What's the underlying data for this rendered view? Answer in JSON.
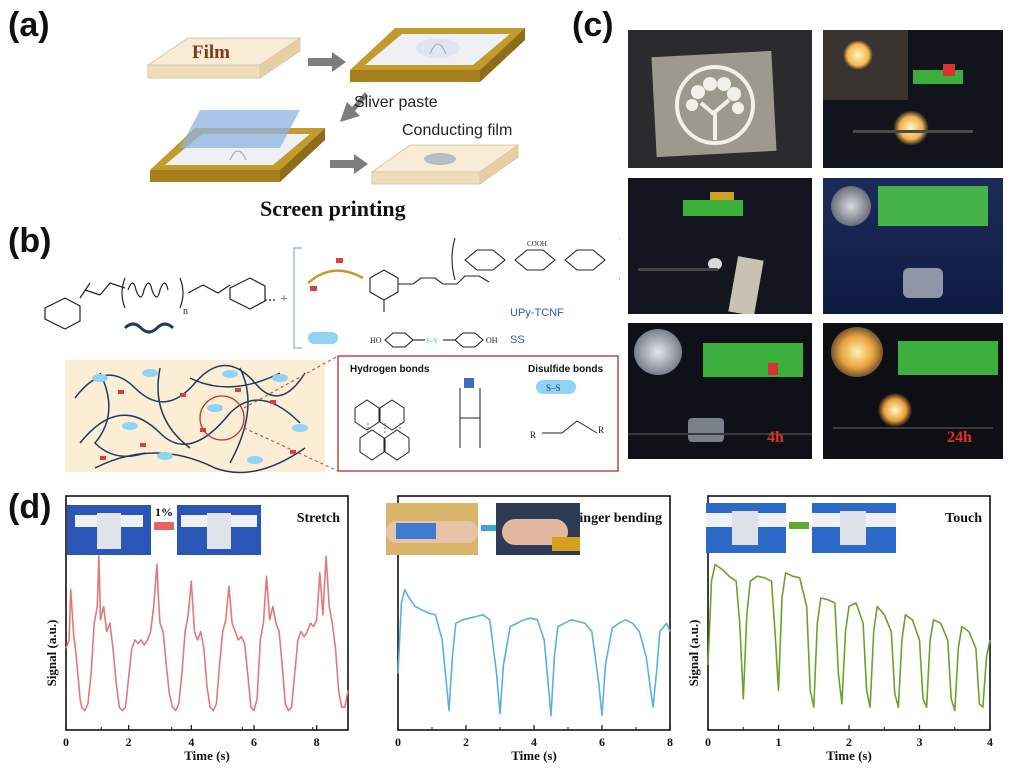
{
  "panels": {
    "a": {
      "label": "(a)",
      "film": "Film",
      "silver_paste": "Sliver paste",
      "conducting_film": "Conducting film",
      "caption": "Screen printing"
    },
    "b": {
      "label": "(b)",
      "subscript_n": "n",
      "upy_tcnf": "UPy-TCNF",
      "ss": "SS",
      "hydrogen_bonds": "Hydrogen bonds",
      "disulfide_bonds": "Disulfide bonds",
      "s_s": "S–S",
      "r1": "R",
      "r2": "R",
      "ho": "HO",
      "oh": "OH",
      "cooh": "COOH"
    },
    "c": {
      "label": "(c)",
      "time_4h": "4h",
      "time_24h": "24h"
    },
    "d": {
      "label": "(d)",
      "strain_label": "1%"
    }
  },
  "chart_data": [
    {
      "type": "line",
      "title": "Stretch",
      "xlabel": "Time (s)",
      "ylabel": "Signal (a.u.)",
      "xlim": [
        0,
        9
      ],
      "xticks": [
        "0",
        "2",
        "4",
        "6",
        "8"
      ],
      "color": "#e07a78",
      "series": [
        {
          "x": [
            0.0,
            0.1,
            0.15,
            0.25,
            0.3,
            0.35,
            0.45,
            0.5,
            0.6,
            0.7,
            0.8,
            0.9,
            1.0,
            1.05,
            1.1,
            1.2,
            1.3,
            1.4,
            1.5,
            1.6,
            1.7,
            1.8,
            1.9,
            2.0,
            2.1,
            2.2,
            2.3,
            2.4,
            2.5,
            2.6,
            2.7,
            2.8,
            2.9,
            2.95,
            3.0,
            3.1,
            3.2,
            3.3,
            3.4,
            3.5,
            3.6,
            3.7,
            3.8,
            3.9,
            4.0,
            4.1,
            4.2,
            4.3,
            4.4,
            4.5,
            4.6,
            4.7,
            4.8,
            4.9,
            5.0,
            5.1,
            5.2,
            5.3,
            5.4,
            5.5,
            5.6,
            5.7,
            5.8,
            5.9,
            6.0,
            6.1,
            6.2,
            6.3,
            6.4,
            6.5,
            6.6,
            6.7,
            6.8,
            6.9,
            7.0,
            7.1,
            7.2,
            7.3,
            7.4,
            7.5,
            7.6,
            7.7,
            7.8,
            7.9,
            8.0,
            8.1,
            8.2,
            8.3,
            8.4,
            8.5,
            8.6,
            8.7,
            8.8,
            8.9,
            9.0
          ],
          "y": [
            0.45,
            0.5,
            0.8,
            0.52,
            0.45,
            0.35,
            0.15,
            0.1,
            0.08,
            0.12,
            0.3,
            0.6,
            0.7,
            1.0,
            0.62,
            0.7,
            0.55,
            0.6,
            0.45,
            0.25,
            0.1,
            0.08,
            0.1,
            0.28,
            0.45,
            0.5,
            0.48,
            0.5,
            0.47,
            0.5,
            0.55,
            0.7,
            0.95,
            0.75,
            0.6,
            0.55,
            0.35,
            0.18,
            0.1,
            0.08,
            0.12,
            0.3,
            0.55,
            0.65,
            0.85,
            0.55,
            0.5,
            0.55,
            0.45,
            0.22,
            0.1,
            0.08,
            0.12,
            0.35,
            0.55,
            0.62,
            0.82,
            0.6,
            0.55,
            0.5,
            0.52,
            0.48,
            0.3,
            0.1,
            0.08,
            0.15,
            0.5,
            0.6,
            0.88,
            0.62,
            0.7,
            0.6,
            0.55,
            0.35,
            0.12,
            0.08,
            0.1,
            0.3,
            0.5,
            0.55,
            0.52,
            0.55,
            0.6,
            0.58,
            0.62,
            0.9,
            0.65,
            1.0,
            0.7,
            0.6,
            0.45,
            0.2,
            0.1,
            0.1,
            0.2
          ]
        }
      ]
    },
    {
      "type": "line",
      "title": "Finger bending",
      "xlabel": "Time (s)",
      "ylabel": "",
      "xlim": [
        0,
        8
      ],
      "xticks": [
        "0",
        "2",
        "4",
        "6",
        "8"
      ],
      "color": "#5ab2dc",
      "series": [
        {
          "x": [
            0.0,
            0.1,
            0.2,
            0.3,
            0.5,
            0.7,
            0.9,
            1.1,
            1.3,
            1.5,
            1.6,
            1.7,
            1.9,
            2.1,
            2.3,
            2.5,
            2.7,
            2.9,
            3.0,
            3.1,
            3.3,
            3.5,
            3.7,
            3.9,
            4.1,
            4.3,
            4.5,
            4.6,
            4.7,
            4.9,
            5.1,
            5.3,
            5.5,
            5.7,
            5.9,
            6.0,
            6.1,
            6.3,
            6.5,
            6.7,
            6.9,
            7.1,
            7.3,
            7.5,
            7.6,
            7.7,
            7.9,
            8.0
          ],
          "y": [
            0.3,
            0.72,
            0.8,
            0.76,
            0.7,
            0.68,
            0.66,
            0.65,
            0.5,
            0.08,
            0.4,
            0.6,
            0.62,
            0.63,
            0.64,
            0.65,
            0.62,
            0.3,
            0.06,
            0.35,
            0.58,
            0.6,
            0.62,
            0.63,
            0.62,
            0.5,
            0.05,
            0.4,
            0.58,
            0.6,
            0.62,
            0.61,
            0.6,
            0.55,
            0.25,
            0.05,
            0.35,
            0.57,
            0.6,
            0.62,
            0.6,
            0.55,
            0.4,
            0.1,
            0.3,
            0.55,
            0.6,
            0.55
          ]
        }
      ]
    },
    {
      "type": "line",
      "title": "Touch",
      "xlabel": "Time (s)",
      "ylabel": "Signal (a.u.)",
      "xlim": [
        0,
        4
      ],
      "xticks": [
        "0",
        "1",
        "2",
        "3",
        "4"
      ],
      "color": "#6aa22e",
      "series": [
        {
          "x": [
            0.0,
            0.05,
            0.1,
            0.2,
            0.3,
            0.4,
            0.45,
            0.5,
            0.55,
            0.6,
            0.7,
            0.8,
            0.9,
            0.95,
            1.0,
            1.05,
            1.1,
            1.2,
            1.3,
            1.4,
            1.45,
            1.5,
            1.55,
            1.6,
            1.7,
            1.8,
            1.85,
            1.9,
            1.95,
            2.0,
            2.1,
            2.2,
            2.25,
            2.3,
            2.35,
            2.4,
            2.5,
            2.6,
            2.65,
            2.7,
            2.75,
            2.8,
            2.9,
            3.0,
            3.05,
            3.1,
            3.15,
            3.2,
            3.3,
            3.4,
            3.45,
            3.5,
            3.55,
            3.6,
            3.7,
            3.8,
            3.85,
            3.9,
            3.95,
            4.0
          ],
          "y": [
            0.35,
            0.85,
            0.95,
            0.92,
            0.88,
            0.85,
            0.6,
            0.15,
            0.65,
            0.85,
            0.88,
            0.87,
            0.85,
            0.55,
            0.2,
            0.75,
            0.9,
            0.88,
            0.87,
            0.7,
            0.2,
            0.1,
            0.6,
            0.75,
            0.74,
            0.72,
            0.3,
            0.12,
            0.55,
            0.7,
            0.72,
            0.6,
            0.2,
            0.1,
            0.55,
            0.7,
            0.65,
            0.55,
            0.18,
            0.1,
            0.5,
            0.65,
            0.62,
            0.5,
            0.15,
            0.1,
            0.5,
            0.62,
            0.6,
            0.5,
            0.15,
            0.08,
            0.45,
            0.58,
            0.55,
            0.45,
            0.12,
            0.1,
            0.4,
            0.5
          ]
        }
      ]
    }
  ]
}
